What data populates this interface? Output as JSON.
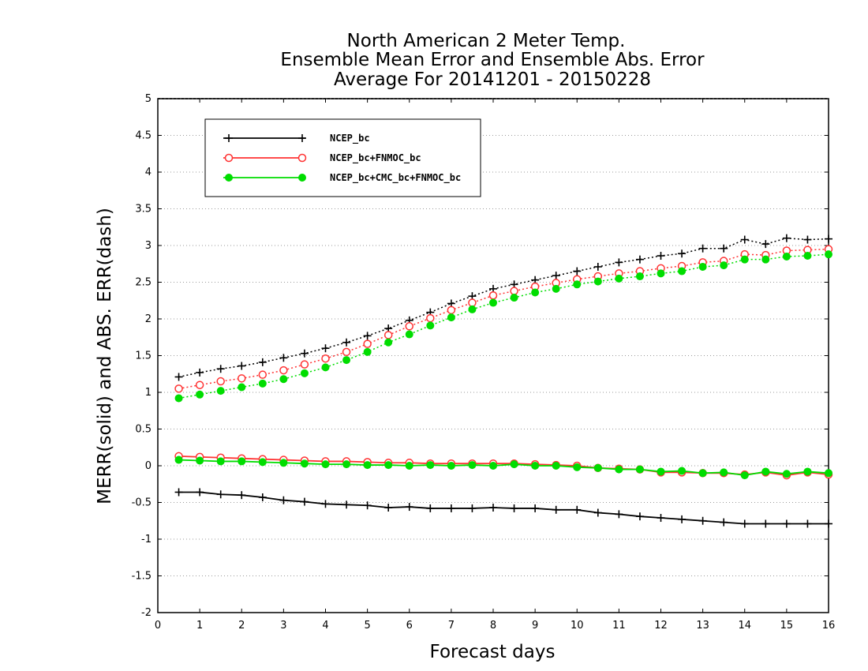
{
  "chart_data": {
    "type": "line",
    "title": [
      "North American 2 Meter Temp.",
      "Ensemble Mean Error and Ensemble Abs. Error",
      "Average For 20141201 - 20150228"
    ],
    "xlabel": "Forecast days",
    "ylabel": "MERR(solid) and ABS. ERR(dash)",
    "xlim": [
      0,
      16
    ],
    "ylim": [
      -2,
      5
    ],
    "x_ticks": [
      0,
      1,
      2,
      3,
      4,
      5,
      6,
      7,
      8,
      9,
      10,
      11,
      12,
      13,
      14,
      15,
      16
    ],
    "y_ticks": [
      -2,
      -1.5,
      -1,
      -0.5,
      0,
      0.5,
      1,
      1.5,
      2,
      2.5,
      3,
      3.5,
      4,
      4.5,
      5
    ],
    "grid": "horizontal dotted",
    "legend_position": "top-left",
    "x": [
      0.5,
      1,
      1.5,
      2,
      2.5,
      3,
      3.5,
      4,
      4.5,
      5,
      5.5,
      6,
      6.5,
      7,
      7.5,
      8,
      8.5,
      9,
      9.5,
      10,
      10.5,
      11,
      11.5,
      12,
      12.5,
      13,
      13.5,
      14,
      14.5,
      15,
      15.5,
      16
    ],
    "series": [
      {
        "name": "NCEP_bc",
        "color": "#000000",
        "marker": "plus",
        "abs_err": [
          1.21,
          1.27,
          1.32,
          1.36,
          1.41,
          1.47,
          1.53,
          1.6,
          1.68,
          1.77,
          1.87,
          1.98,
          2.09,
          2.21,
          2.31,
          2.41,
          2.47,
          2.53,
          2.59,
          2.65,
          2.71,
          2.77,
          2.81,
          2.86,
          2.89,
          2.96,
          2.96,
          3.08,
          3.02,
          3.1,
          3.08,
          3.09
        ],
        "mean_err": [
          -0.36,
          -0.36,
          -0.39,
          -0.4,
          -0.43,
          -0.47,
          -0.49,
          -0.52,
          -0.53,
          -0.54,
          -0.57,
          -0.56,
          -0.58,
          -0.58,
          -0.58,
          -0.57,
          -0.58,
          -0.58,
          -0.6,
          -0.6,
          -0.64,
          -0.66,
          -0.69,
          -0.71,
          -0.73,
          -0.75,
          -0.77,
          -0.79,
          -0.79,
          -0.79,
          -0.79,
          -0.79
        ]
      },
      {
        "name": "NCEP_bc+FNMOC_bc",
        "color": "#ff3333",
        "marker": "open-circle",
        "abs_err": [
          1.05,
          1.1,
          1.15,
          1.19,
          1.24,
          1.3,
          1.38,
          1.46,
          1.55,
          1.66,
          1.78,
          1.9,
          2.01,
          2.12,
          2.22,
          2.32,
          2.38,
          2.44,
          2.49,
          2.54,
          2.58,
          2.62,
          2.65,
          2.69,
          2.72,
          2.77,
          2.79,
          2.88,
          2.87,
          2.93,
          2.94,
          2.95
        ],
        "mean_err": [
          0.13,
          0.12,
          0.11,
          0.1,
          0.09,
          0.08,
          0.07,
          0.06,
          0.06,
          0.05,
          0.04,
          0.04,
          0.03,
          0.03,
          0.03,
          0.03,
          0.03,
          0.02,
          0.01,
          0.0,
          -0.03,
          -0.04,
          -0.05,
          -0.09,
          -0.09,
          -0.1,
          -0.1,
          -0.12,
          -0.09,
          -0.13,
          -0.09,
          -0.12
        ]
      },
      {
        "name": "NCEP_bc+CMC_bc+FNMOC_bc",
        "color": "#00dd00",
        "marker": "filled-circle",
        "abs_err": [
          0.92,
          0.97,
          1.02,
          1.07,
          1.12,
          1.18,
          1.26,
          1.34,
          1.44,
          1.55,
          1.68,
          1.79,
          1.91,
          2.02,
          2.13,
          2.22,
          2.29,
          2.36,
          2.41,
          2.47,
          2.51,
          2.55,
          2.58,
          2.62,
          2.65,
          2.71,
          2.73,
          2.81,
          2.81,
          2.85,
          2.86,
          2.88
        ],
        "mean_err": [
          0.08,
          0.07,
          0.06,
          0.06,
          0.05,
          0.04,
          0.03,
          0.02,
          0.02,
          0.01,
          0.01,
          0.0,
          0.01,
          0.0,
          0.01,
          0.0,
          0.02,
          0.0,
          0.0,
          -0.02,
          -0.03,
          -0.05,
          -0.05,
          -0.08,
          -0.07,
          -0.1,
          -0.09,
          -0.13,
          -0.08,
          -0.11,
          -0.08,
          -0.1
        ]
      }
    ]
  }
}
